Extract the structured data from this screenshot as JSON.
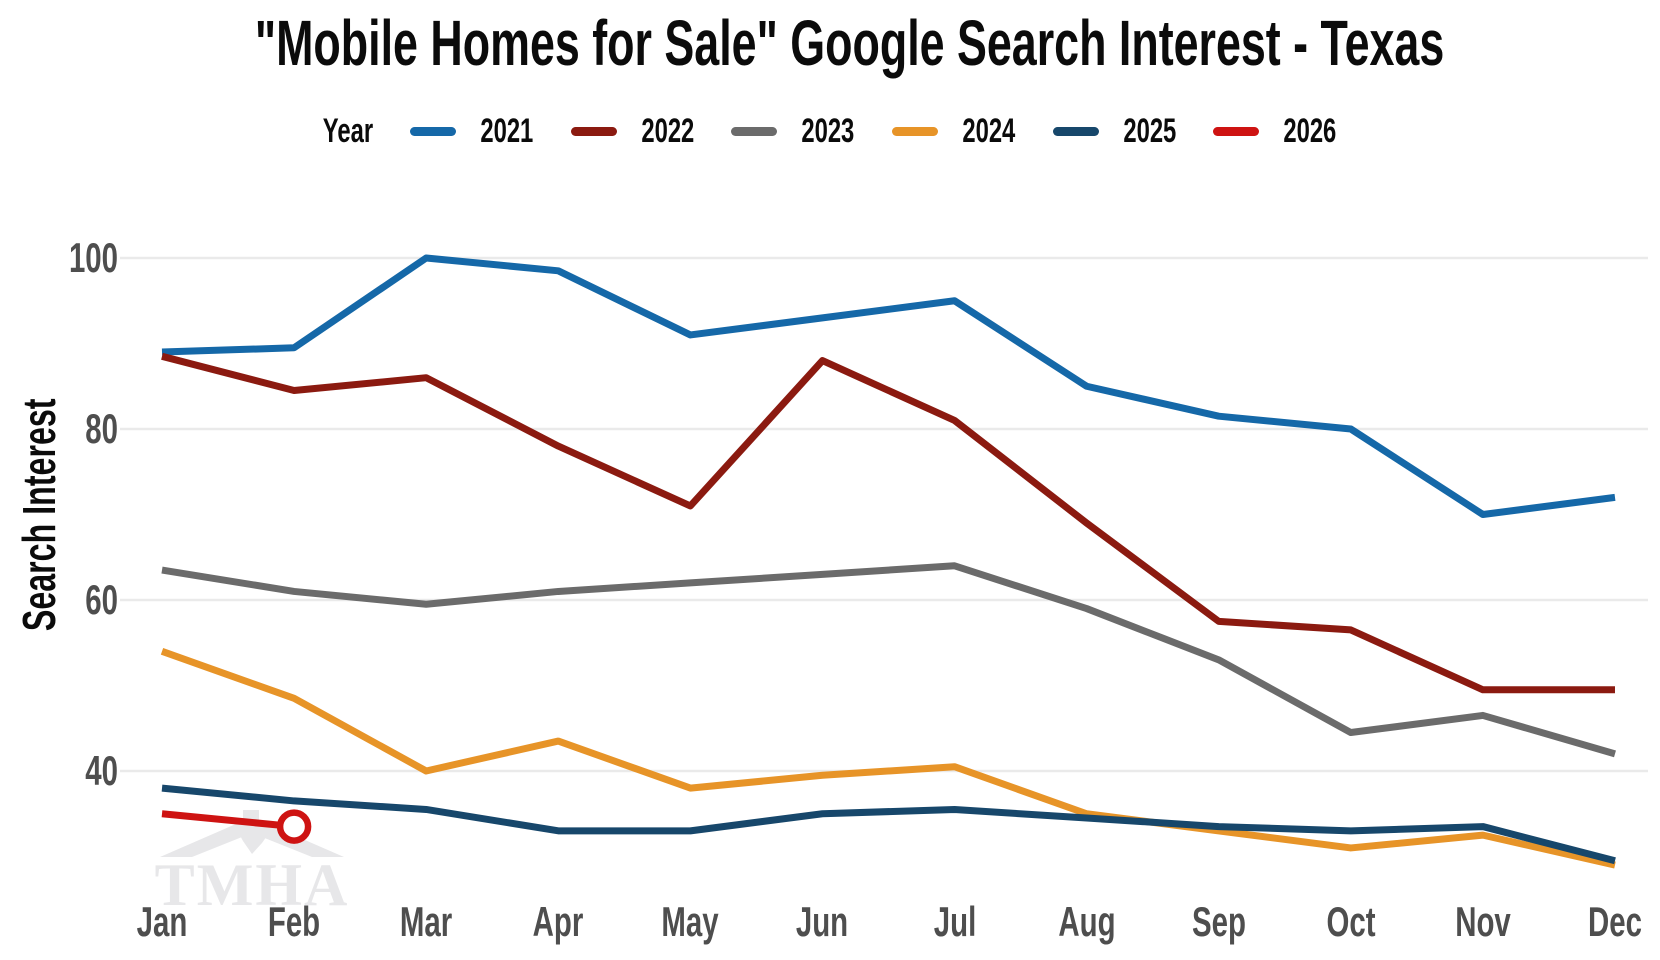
{
  "header": {
    "title": "\"Mobile Homes for Sale\" Google Search Interest - Texas"
  },
  "legend": {
    "title_label": "Year"
  },
  "watermark": {
    "text": "TMHA"
  },
  "chart_data": {
    "type": "line",
    "title": "\"Mobile Homes for Sale\" Google Search Interest - Texas",
    "xlabel": "",
    "ylabel": "Search Interest",
    "categories": [
      "Jan",
      "Feb",
      "Mar",
      "Apr",
      "May",
      "Jun",
      "Jul",
      "Aug",
      "Sep",
      "Oct",
      "Nov",
      "Dec"
    ],
    "yticks": [
      100,
      80,
      60,
      40
    ],
    "ylim": [
      27,
      103
    ],
    "grid": "horizontal-only",
    "legend_position": "top-center",
    "gridline_color": "#EAEAEA",
    "axis_text_color": "#4e4e4e",
    "series": [
      {
        "name": "2021",
        "color": "#1568A8",
        "values": [
          89,
          89.5,
          100,
          98.5,
          91,
          93,
          95,
          85,
          81.5,
          80,
          70,
          72
        ]
      },
      {
        "name": "2022",
        "color": "#8B1A10",
        "values": [
          88.5,
          84.5,
          86,
          78,
          71,
          88,
          81,
          69,
          57.5,
          56.5,
          49.5,
          49.5
        ]
      },
      {
        "name": "2023",
        "color": "#6B6B6B",
        "values": [
          63.5,
          61,
          59.5,
          61,
          62,
          63,
          64,
          59,
          53,
          44.5,
          46.5,
          42
        ]
      },
      {
        "name": "2024",
        "color": "#E79428",
        "values": [
          54,
          48.5,
          40,
          43.5,
          38,
          39.5,
          40.5,
          35,
          33,
          31,
          32.5,
          29
        ]
      },
      {
        "name": "2025",
        "color": "#17476B",
        "values": [
          38,
          36.5,
          35.5,
          33,
          33,
          35,
          35.5,
          34.5,
          33.5,
          33,
          33.5,
          29.5
        ]
      },
      {
        "name": "2026",
        "color": "#CE1312",
        "values": [
          35,
          33.5,
          null,
          null,
          null,
          null,
          null,
          null,
          null,
          null,
          null,
          null
        ],
        "end_marker": "open-circle"
      }
    ]
  }
}
